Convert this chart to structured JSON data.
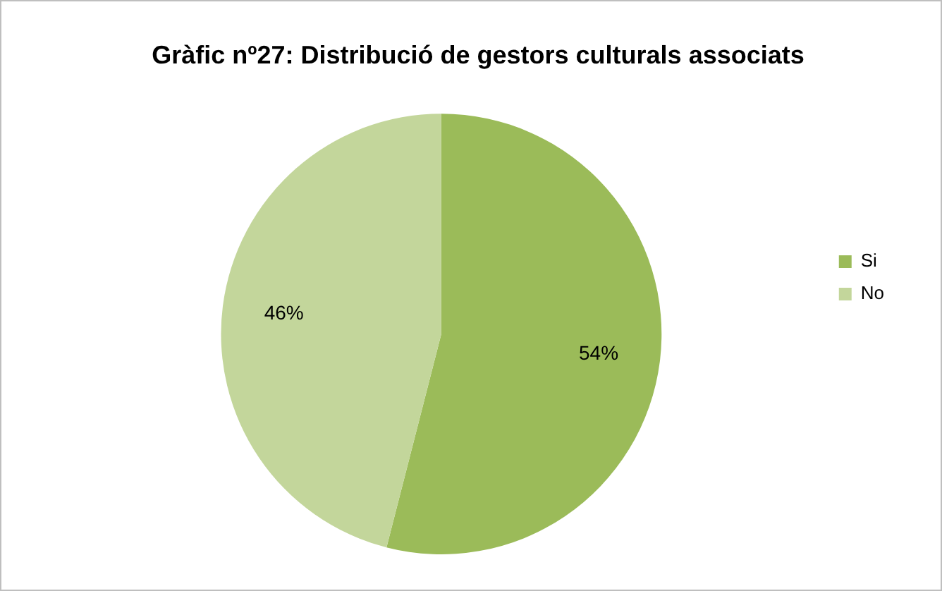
{
  "chart_data": {
    "type": "pie",
    "title": "Gràfic nº27: Distribució de gestors culturals associats",
    "categories": [
      "Si",
      "No"
    ],
    "values": [
      54,
      46
    ],
    "colors": [
      "#9bbb59",
      "#c3d69b"
    ],
    "value_labels": [
      "54%",
      "46%"
    ],
    "legend": "right"
  }
}
